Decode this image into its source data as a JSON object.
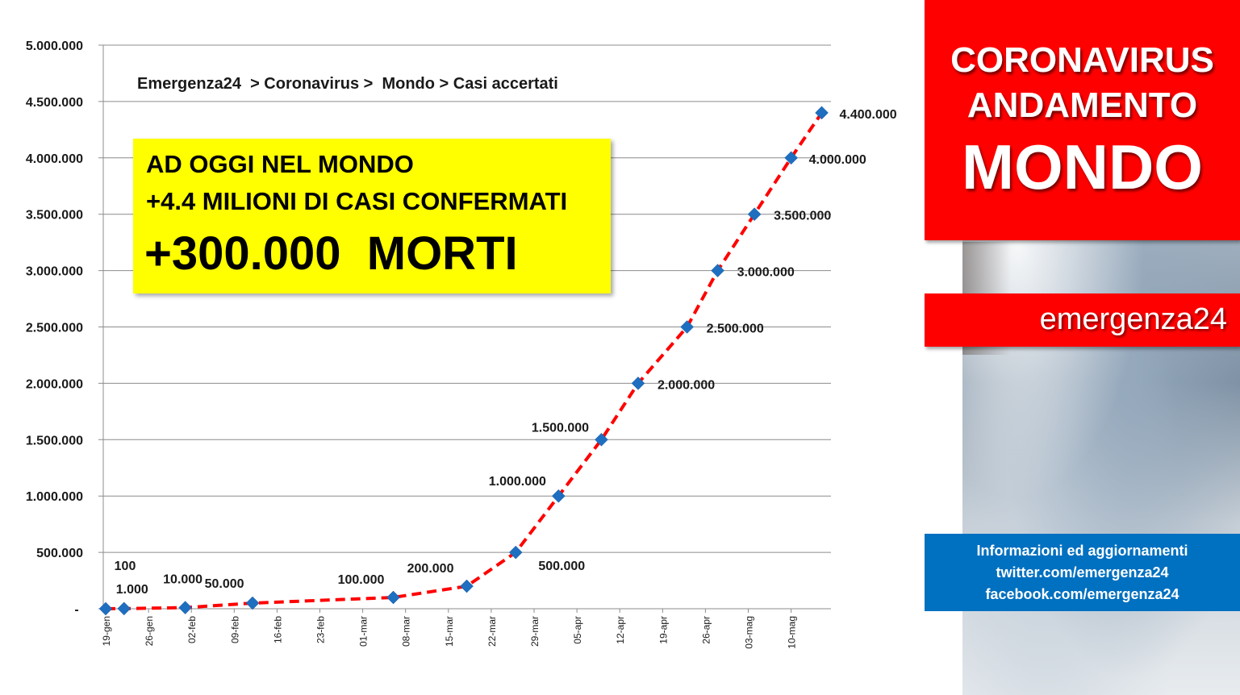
{
  "chart_data": {
    "type": "line",
    "title": "Emergenza24  > Coronavirus >  Mondo > Casi accertati",
    "xlabel": "",
    "ylabel": "",
    "ylim": [
      0,
      5000000
    ],
    "y_tick_labels": [
      "-",
      "500.000",
      "1.000.000",
      "1.500.000",
      "2.000.000",
      "2.500.000",
      "3.000.000",
      "3.500.000",
      "4.000.000",
      "4.500.000",
      "5.000.000"
    ],
    "x_tick_labels": [
      "19-gen",
      "26-gen",
      "02-feb",
      "09-feb",
      "16-feb",
      "23-feb",
      "01-mar",
      "08-mar",
      "15-mar",
      "22-mar",
      "29-mar",
      "05-apr",
      "12-apr",
      "19-apr",
      "26-apr",
      "03-mag",
      "10-mag"
    ],
    "grid": true,
    "series": [
      {
        "color": "#ff0000",
        "marker_color": "#1f6fc0",
        "points": [
          {
            "x": "19-gen",
            "y": 100,
            "label": "100"
          },
          {
            "x": "22-gen",
            "y": 1000,
            "label": "1.000"
          },
          {
            "x": "01-feb",
            "y": 10000,
            "label": "10.000"
          },
          {
            "x": "12-feb",
            "y": 50000,
            "label": "50.000"
          },
          {
            "x": "06-mar",
            "y": 100000,
            "label": "100.000"
          },
          {
            "x": "18-mar",
            "y": 200000,
            "label": "200.000"
          },
          {
            "x": "26-mar",
            "y": 500000,
            "label": "500.000"
          },
          {
            "x": "02-apr",
            "y": 1000000,
            "label": "1.000.000"
          },
          {
            "x": "09-apr",
            "y": 1500000,
            "label": "1.500.000"
          },
          {
            "x": "15-apr",
            "y": 2000000,
            "label": "2.000.000"
          },
          {
            "x": "23-apr",
            "y": 2500000,
            "label": "2.500.000"
          },
          {
            "x": "28-apr",
            "y": 3000000,
            "label": "3.000.000"
          },
          {
            "x": "04-mag",
            "y": 3500000,
            "label": "3.500.000"
          },
          {
            "x": "10-mag",
            "y": 4000000,
            "label": "4.000.000"
          },
          {
            "x": "15-mag",
            "y": 4400000,
            "label": "4.400.000"
          }
        ]
      }
    ]
  },
  "callout": {
    "line1": "AD OGGI NEL MONDO",
    "line2": "+4.4 MILIONI DI CASI CONFERMATI",
    "line3": "+300.000  MORTI"
  },
  "header": {
    "line1": "CORONAVIRUS",
    "line2": "ANDAMENTO",
    "line3": "MONDO"
  },
  "brand": {
    "name": "emergenza24"
  },
  "info": {
    "line1": "Informazioni ed aggiornamenti",
    "line2": "twitter.com/emergenza24",
    "line3": "facebook.com/emergenza24"
  },
  "colors": {
    "line": "#ff0000",
    "marker": "#1f6fc0",
    "header_bg": "#ff0000",
    "info_bg": "#0070c0",
    "callout_bg": "#ffff00"
  }
}
